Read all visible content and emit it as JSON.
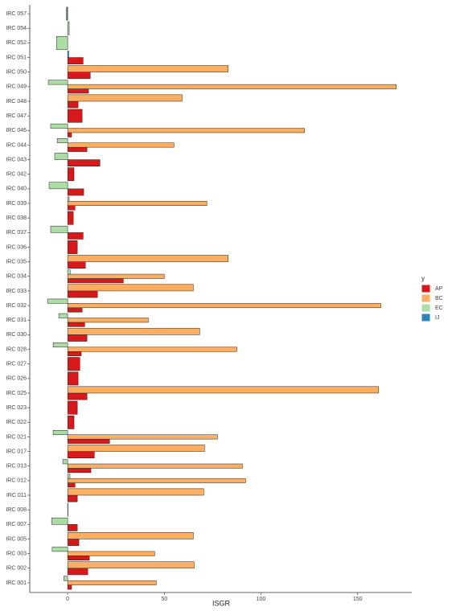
{
  "chart_data": {
    "type": "bar",
    "orientation": "horizontal",
    "x_label": "ISGR",
    "legend_title": "y",
    "legend_position": "right",
    "categories": [
      "IRC 001",
      "IRC 002",
      "IRC 003",
      "IRC 005",
      "IRC 007",
      "IRC 008",
      "IRC 011",
      "IRC 012",
      "IRC 013",
      "IRC 017",
      "IRC 021",
      "IRC 022",
      "IRC 023",
      "IRC 025",
      "IRC 026",
      "IRC 027",
      "IRC 028",
      "IRC 030",
      "IRC 031",
      "IRC 032",
      "IRC 033",
      "IRC 034",
      "IRC 035",
      "IRC 036",
      "IRC 037",
      "IRC 038",
      "IRC 039",
      "IRC 040",
      "IRC 042",
      "IRC 043",
      "IRC 044",
      "IRC 046",
      "IRC 047",
      "IRC 048",
      "IRC 049",
      "IRC 050",
      "IRC 051",
      "IRC 052",
      "IRC 054",
      "IRC 057"
    ],
    "series": [
      {
        "name": "AP",
        "color": "#d7191c",
        "values": [
          2,
          10.4,
          11.2,
          5.8,
          5,
          0,
          5,
          3.8,
          12,
          13.8,
          21.7,
          3.3,
          5,
          10,
          5.4,
          6.3,
          7,
          10,
          8.8,
          7.5,
          15.4,
          28.8,
          9.2,
          5,
          8,
          2.9,
          3.8,
          8.3,
          3.3,
          16.7,
          10,
          2,
          7.5,
          5.4,
          10.8,
          11.7,
          8,
          null,
          null,
          null
        ]
      },
      {
        "name": "BC",
        "color": "#fdae61",
        "values": [
          45.8,
          65.4,
          45,
          65,
          null,
          null,
          70.4,
          92,
          90.4,
          70.8,
          77.5,
          null,
          null,
          160.8,
          null,
          null,
          87.5,
          68.3,
          41.7,
          162,
          65,
          50,
          83,
          null,
          null,
          null,
          72,
          null,
          null,
          null,
          55,
          122.5,
          null,
          59.2,
          170,
          83,
          null,
          null,
          null,
          null
        ]
      },
      {
        "name": "EC",
        "color": "#abdda4",
        "values": [
          -2,
          null,
          -8,
          null,
          -8.3,
          null,
          null,
          1.2,
          -2.5,
          null,
          -7.5,
          null,
          null,
          null,
          null,
          null,
          -7.5,
          null,
          -4.6,
          -10.4,
          null,
          1.3,
          null,
          null,
          -8.8,
          null,
          0.8,
          -9.6,
          null,
          -6.7,
          -5.4,
          -8.8,
          null,
          null,
          -10,
          null,
          null,
          -5.8,
          0.8,
          null
        ]
      },
      {
        "name": "IJ",
        "color": "#2b83ba",
        "values": [
          null,
          null,
          null,
          null,
          null,
          null,
          null,
          null,
          null,
          null,
          null,
          null,
          null,
          null,
          null,
          null,
          null,
          null,
          null,
          null,
          null,
          null,
          null,
          null,
          null,
          null,
          null,
          null,
          null,
          null,
          null,
          null,
          null,
          null,
          null,
          null,
          0.5,
          null,
          null,
          -0.6
        ]
      }
    ],
    "xlim": [
      -19.6,
      178
    ],
    "xticks": [
      0,
      50,
      100,
      150
    ],
    "grid": false
  }
}
